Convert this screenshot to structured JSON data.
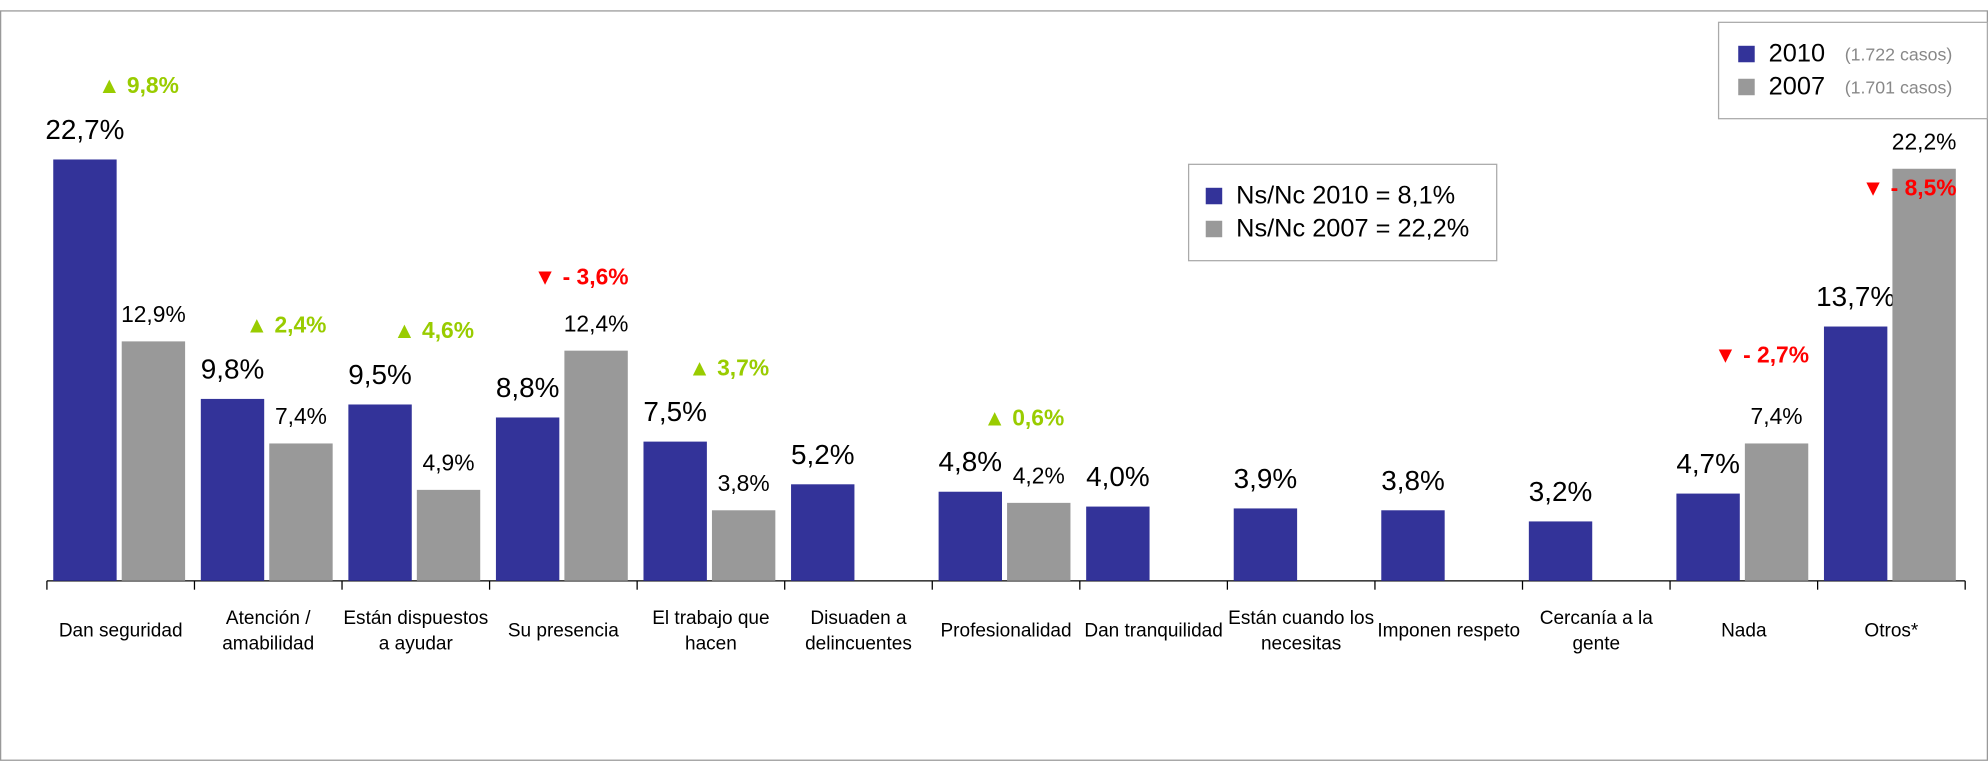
{
  "chart_data": {
    "type": "bar",
    "categories": [
      "Dan seguridad",
      "Atención / amabilidad",
      "Están dispuestos a ayudar",
      "Su presencia",
      "El trabajo que hacen",
      "Disuaden a delincuentes",
      "Profesionalidad",
      "Dan tranquilidad",
      "Están cuando los necesitas",
      "Imponen respeto",
      "Cercanía a la gente",
      "Nada",
      "Otros*"
    ],
    "series": [
      {
        "name": "2010",
        "note": "(1.722 casos)",
        "color": "#333399",
        "values": [
          22.7,
          9.8,
          9.5,
          8.8,
          7.5,
          5.2,
          4.8,
          4.0,
          3.9,
          3.8,
          3.2,
          4.7,
          13.7
        ],
        "value_labels": [
          "22,7%",
          "9,8%",
          "9,5%",
          "8,8%",
          "7,5%",
          "5,2%",
          "4,8%",
          "4,0%",
          "3,9%",
          "3,8%",
          "3,2%",
          "4,7%",
          "13,7%"
        ]
      },
      {
        "name": "2007",
        "note": "(1.701 casos)",
        "color": "#999999",
        "values": [
          12.9,
          7.4,
          4.9,
          12.4,
          3.8,
          null,
          4.2,
          null,
          null,
          null,
          null,
          7.4,
          22.2
        ],
        "value_labels": [
          "12,9%",
          "7,4%",
          "4,9%",
          "12,4%",
          "3,8%",
          null,
          "4,2%",
          null,
          null,
          null,
          null,
          "7,4%",
          "22,2%"
        ]
      }
    ],
    "changes": [
      9.8,
      2.4,
      4.6,
      -3.6,
      3.7,
      null,
      0.6,
      null,
      null,
      null,
      null,
      -2.7,
      -8.5
    ],
    "change_labels": [
      "▲ 9,8%",
      "▲ 2,4%",
      "▲ 4,6%",
      "▼ - 3,6%",
      "▲ 3,7%",
      null,
      "▲ 0,6%",
      null,
      null,
      null,
      null,
      "▼ - 2,7%",
      "▼ - 8,5%"
    ],
    "change_colors": {
      "up": "#99cc00",
      "down": "#ff0000"
    },
    "nsnc": [
      "Ns/Nc 2010 = 8,1%",
      "Ns/Nc 2007 = 22,2%"
    ],
    "ylim": [
      0,
      25
    ]
  }
}
